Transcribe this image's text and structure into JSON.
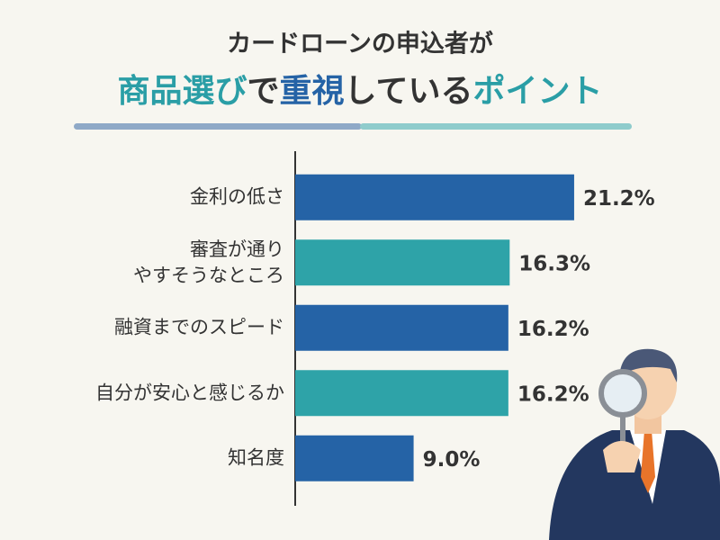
{
  "chart_data": {
    "type": "barh",
    "title": "カードローンの申込者が",
    "subtitle": [
      {
        "text": "商品選び",
        "color": "#2a9ea6"
      },
      {
        "text": "で",
        "color": "#333333"
      },
      {
        "text": "重視",
        "color": "#2563a6"
      },
      {
        "text": "している",
        "color": "#333333"
      },
      {
        "text": "ポイント",
        "color": "#2a9ea6"
      }
    ],
    "categories": [
      "金利の低さ",
      "審査が通り\nやすそうなところ",
      "融資までのスピード",
      "自分が安心と感じるか",
      "知名度"
    ],
    "values": [
      21.2,
      16.3,
      16.2,
      16.2,
      9.0
    ],
    "value_labels": [
      "21.2%",
      "16.3%",
      "16.2%",
      "16.2%",
      "9.0%"
    ],
    "colors": [
      "#2563a6",
      "#2ea3a8",
      "#2563a6",
      "#2ea3a8",
      "#2563a6"
    ]
  }
}
